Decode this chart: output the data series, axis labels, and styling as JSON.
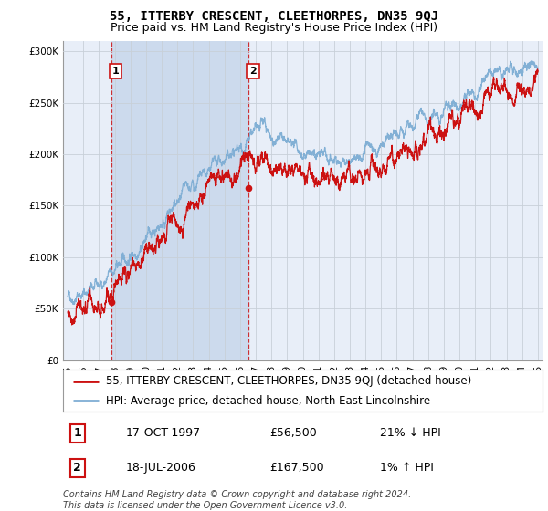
{
  "title": "55, ITTERBY CRESCENT, CLEETHORPES, DN35 9QJ",
  "subtitle": "Price paid vs. HM Land Registry's House Price Index (HPI)",
  "ylabel_ticks": [
    "£0",
    "£50K",
    "£100K",
    "£150K",
    "£200K",
    "£250K",
    "£300K"
  ],
  "ytick_values": [
    0,
    50000,
    100000,
    150000,
    200000,
    250000,
    300000
  ],
  "ylim": [
    0,
    310000
  ],
  "xlim_start": 1994.7,
  "xlim_end": 2025.3,
  "sale1_x": 1997.79,
  "sale1_y": 56500,
  "sale2_x": 2006.54,
  "sale2_y": 167500,
  "sale1_date": "17-OCT-1997",
  "sale1_price": "£56,500",
  "sale1_hpi": "21% ↓ HPI",
  "sale2_date": "18-JUL-2006",
  "sale2_price": "£167,500",
  "sale2_hpi": "1% ↑ HPI",
  "hpi_color": "#7dadd4",
  "price_color": "#cc1111",
  "bg_color": "#e8eef8",
  "shade_color": "#ccdaed",
  "grid_color": "#c8d0d8",
  "legend_label_price": "55, ITTERBY CRESCENT, CLEETHORPES, DN35 9QJ (detached house)",
  "legend_label_hpi": "HPI: Average price, detached house, North East Lincolnshire",
  "footer": "Contains HM Land Registry data © Crown copyright and database right 2024.\nThis data is licensed under the Open Government Licence v3.0.",
  "title_fontsize": 10,
  "subtitle_fontsize": 9,
  "tick_fontsize": 7.5,
  "legend_fontsize": 8.5,
  "footer_fontsize": 7
}
